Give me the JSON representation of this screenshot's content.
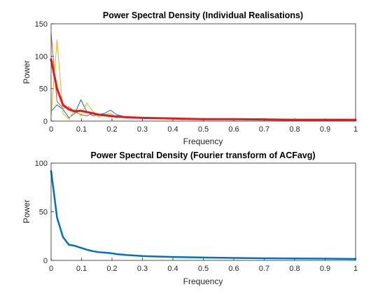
{
  "chart_data": [
    {
      "type": "line",
      "title": "Power Spectral Density (Individual Realisations)",
      "xlabel": "Frequency",
      "ylabel": "Power",
      "xlim": [
        0,
        1
      ],
      "ylim": [
        0,
        150
      ],
      "xticks": [
        "0",
        "0.1",
        "0.2",
        "0.3",
        "0.4",
        "0.5",
        "0.6",
        "0.7",
        "0.8",
        "0.9",
        "1"
      ],
      "yticks": [
        "0",
        "50",
        "100",
        "150"
      ],
      "grid": false,
      "series": [
        {
          "color": "#0072BD",
          "width": 1,
          "x": [
            0,
            0.0195,
            0.039,
            0.0586,
            0.078,
            0.0977,
            0.117,
            0.137,
            0.156,
            0.176,
            0.195,
            0.215,
            0.25,
            0.3,
            0.4,
            0.5,
            0.6,
            0.7,
            0.8,
            0.9,
            1
          ],
          "y": [
            15,
            25,
            18,
            5,
            12,
            33,
            15,
            8,
            10,
            12,
            17,
            10,
            6,
            5,
            4,
            3,
            3,
            2,
            2,
            2,
            2
          ]
        },
        {
          "color": "#D95319",
          "width": 1,
          "x": [
            0,
            0.0195,
            0.039,
            0.0586,
            0.078,
            0.0977,
            0.117,
            0.137,
            0.156,
            0.176,
            0.195,
            0.215,
            0.25,
            0.3,
            0.4,
            0.5,
            0.6,
            0.7,
            0.8,
            0.9,
            1
          ],
          "y": [
            135,
            30,
            20,
            22,
            14,
            10,
            8,
            12,
            9,
            8,
            7,
            6,
            5,
            4,
            4,
            3,
            3,
            3,
            2,
            2,
            2
          ]
        },
        {
          "color": "#EDB120",
          "width": 1,
          "x": [
            0,
            0.0195,
            0.039,
            0.0586,
            0.078,
            0.0977,
            0.117,
            0.137,
            0.156,
            0.176,
            0.195,
            0.215,
            0.25,
            0.3,
            0.4,
            0.5,
            0.6,
            0.7,
            0.8,
            0.9,
            1
          ],
          "y": [
            8,
            125,
            12,
            3,
            18,
            8,
            28,
            15,
            6,
            10,
            12,
            5,
            7,
            4,
            3,
            4,
            3,
            4,
            2,
            2,
            2
          ]
        },
        {
          "color": "#E31A1C",
          "width": 3,
          "x": [
            0,
            0.0195,
            0.039,
            0.0586,
            0.078,
            0.0977,
            0.117,
            0.137,
            0.156,
            0.176,
            0.195,
            0.215,
            0.25,
            0.3,
            0.4,
            0.5,
            0.6,
            0.7,
            0.8,
            0.9,
            1
          ],
          "y": [
            95,
            50,
            25,
            18,
            15,
            16,
            14,
            12,
            10,
            9,
            8,
            7,
            6,
            5,
            4,
            3,
            3,
            2.5,
            2,
            2,
            2
          ]
        }
      ]
    },
    {
      "type": "line",
      "title": "Power Spectral Density (Fourier transform of ACFavg)",
      "xlabel": "Frequency",
      "ylabel": "Power",
      "xlim": [
        0,
        1
      ],
      "ylim": [
        0,
        100
      ],
      "xticks": [
        "0",
        "0.1",
        "0.2",
        "0.3",
        "0.4",
        "0.5",
        "0.6",
        "0.7",
        "0.8",
        "0.9",
        "1"
      ],
      "yticks": [
        "0",
        "50",
        "100"
      ],
      "grid": false,
      "series": [
        {
          "color": "#0072BD",
          "width": 2.5,
          "x": [
            0,
            0.0195,
            0.039,
            0.0586,
            0.078,
            0.0977,
            0.117,
            0.137,
            0.156,
            0.176,
            0.195,
            0.215,
            0.25,
            0.3,
            0.35,
            0.4,
            0.5,
            0.6,
            0.7,
            0.8,
            0.9,
            1
          ],
          "y": [
            92,
            44,
            24,
            16,
            15,
            13,
            11,
            9.5,
            8.5,
            8,
            7.5,
            6.5,
            5.5,
            4.5,
            4,
            3.5,
            3,
            2.5,
            2.2,
            2,
            1.8,
            1.5
          ]
        }
      ]
    }
  ]
}
